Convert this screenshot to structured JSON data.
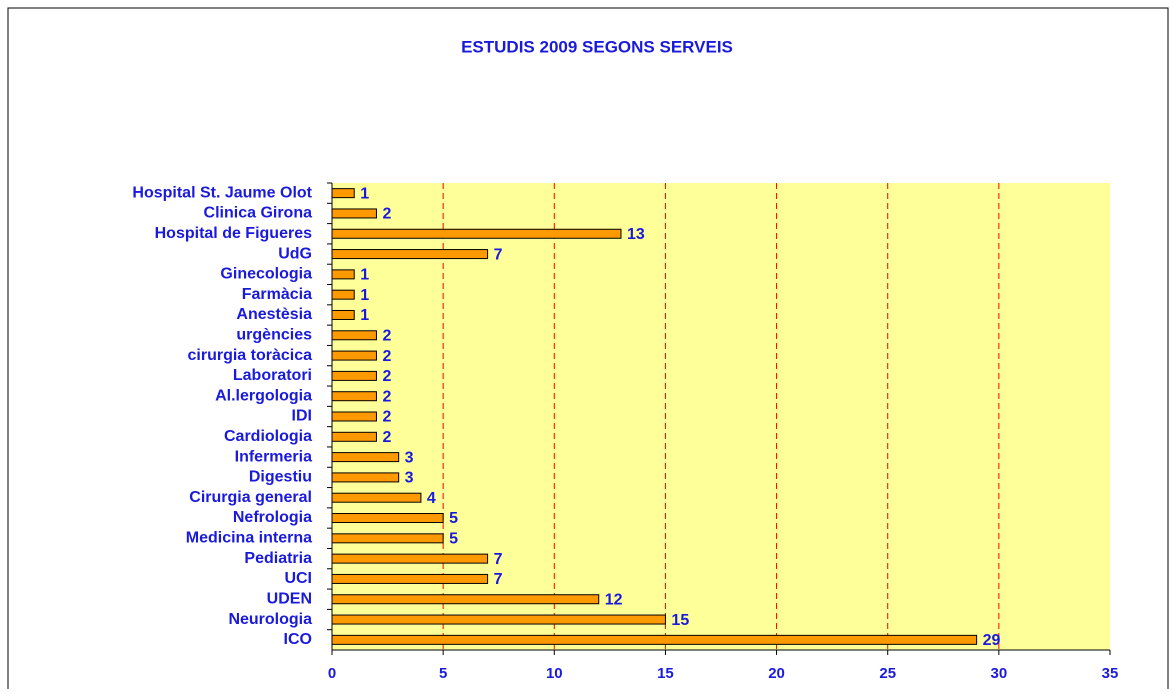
{
  "chart_data": {
    "type": "barh",
    "title": "ESTUDIS 2009 SEGONS SERVEIS",
    "categories": [
      "Hospital St. Jaume Olot",
      "Clinica Girona",
      "Hospital de Figueres",
      "UdG",
      "Ginecologia",
      "Farmàcia",
      "Anestèsia",
      "urgències",
      "cirurgia toràcica",
      "Laboratori",
      "Al.lergologia",
      "IDI",
      "Cardiologia",
      "Infermeria",
      "Digestiu",
      "Cirurgia general",
      "Nefrologia",
      "Medicina interna",
      "Pediatria",
      "UCI",
      "UDEN",
      "Neurologia",
      "ICO"
    ],
    "values": [
      1,
      2,
      13,
      7,
      1,
      1,
      1,
      2,
      2,
      2,
      2,
      2,
      2,
      3,
      3,
      4,
      5,
      5,
      7,
      7,
      12,
      15,
      29
    ],
    "color": "#ff9900",
    "xlim": [
      0,
      35
    ],
    "xticks": [
      0,
      5,
      10,
      15,
      20,
      25,
      30,
      35
    ],
    "grid": true
  }
}
